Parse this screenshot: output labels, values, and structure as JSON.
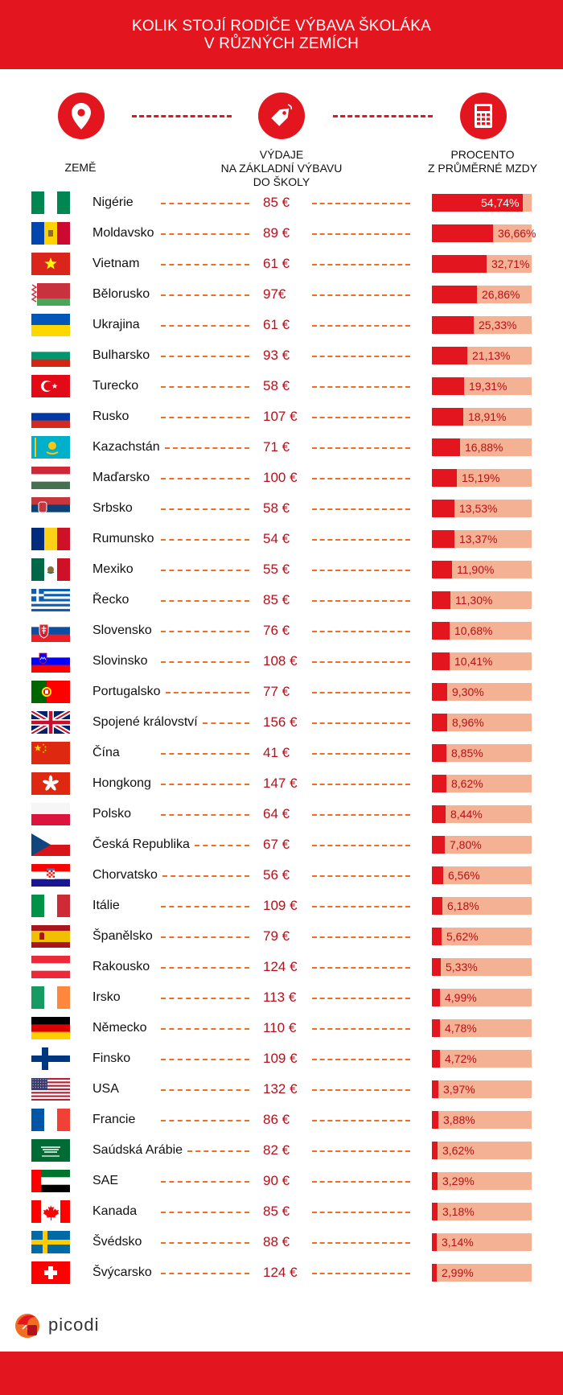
{
  "header": {
    "line1": "KOLIK STOJÍ RODIČE VÝBAVA ŠKOLÁKA",
    "line2": "V RŮZNÝCH ZEMÍCH"
  },
  "columns": {
    "country": "ZEMĚ",
    "spend_1": "VÝDAJE",
    "spend_2": "NA ZÁKLADNÍ VÝBAVU",
    "spend_3": "DO ŠKOLY",
    "pct_1": "PROCENTO",
    "pct_2": "Z PRŮMĚRNÉ MZDY"
  },
  "icons": [
    "location-pin-icon",
    "price-tag-icon",
    "calculator-icon"
  ],
  "colors": {
    "accent": "#e3161f",
    "bar_bg": "#f5b193",
    "price_text": "#b2121c",
    "dash": "#f26c22"
  },
  "logo": {
    "text": "picodi"
  },
  "chart_data": {
    "type": "bar",
    "xlim": [
      0,
      60
    ],
    "rows": [
      {
        "country": "Nigérie",
        "flag": "nigeria",
        "price": "85 €",
        "pct": 54.74,
        "pct_label": "54,74%"
      },
      {
        "country": "Moldavsko",
        "flag": "moldova",
        "price": "89 €",
        "pct": 36.66,
        "pct_label": "36,66%"
      },
      {
        "country": "Vietnam",
        "flag": "vietnam",
        "price": "61 €",
        "pct": 32.71,
        "pct_label": "32,71%"
      },
      {
        "country": "Bělorusko",
        "flag": "belarus",
        "price": "97€",
        "pct": 26.86,
        "pct_label": "26,86%"
      },
      {
        "country": "Ukrajina",
        "flag": "ukraine",
        "price": "61 €",
        "pct": 25.33,
        "pct_label": "25,33%"
      },
      {
        "country": "Bulharsko",
        "flag": "bulgaria",
        "price": "93 €",
        "pct": 21.13,
        "pct_label": "21,13%"
      },
      {
        "country": "Turecko",
        "flag": "turkey",
        "price": "58 €",
        "pct": 19.31,
        "pct_label": "19,31%"
      },
      {
        "country": "Rusko",
        "flag": "russia",
        "price": "107 €",
        "pct": 18.91,
        "pct_label": "18,91%"
      },
      {
        "country": "Kazachstán",
        "flag": "kazakhstan",
        "price": "71 €",
        "pct": 16.88,
        "pct_label": "16,88%"
      },
      {
        "country": "Maďarsko",
        "flag": "hungary",
        "price": "100 €",
        "pct": 15.19,
        "pct_label": "15,19%"
      },
      {
        "country": "Srbsko",
        "flag": "serbia",
        "price": "58 €",
        "pct": 13.53,
        "pct_label": "13,53%"
      },
      {
        "country": "Rumunsko",
        "flag": "romania",
        "price": "54 €",
        "pct": 13.37,
        "pct_label": "13,37%"
      },
      {
        "country": "Mexiko",
        "flag": "mexico",
        "price": "55 €",
        "pct": 11.9,
        "pct_label": "11,90%"
      },
      {
        "country": "Řecko",
        "flag": "greece",
        "price": "85 €",
        "pct": 11.3,
        "pct_label": "11,30%"
      },
      {
        "country": "Slovensko",
        "flag": "slovakia",
        "price": "76 €",
        "pct": 10.68,
        "pct_label": "10,68%"
      },
      {
        "country": "Slovinsko",
        "flag": "slovenia",
        "price": "108 €",
        "pct": 10.41,
        "pct_label": "10,41%"
      },
      {
        "country": "Portugalsko",
        "flag": "portugal",
        "price": "77 €",
        "pct": 9.3,
        "pct_label": "9,30%"
      },
      {
        "country": "Spojené království",
        "flag": "uk",
        "price": "156 €",
        "pct": 8.96,
        "pct_label": "8,96%"
      },
      {
        "country": "Čína",
        "flag": "china",
        "price": "41 €",
        "pct": 8.85,
        "pct_label": "8,85%"
      },
      {
        "country": "Hongkong",
        "flag": "hongkong",
        "price": "147 €",
        "pct": 8.62,
        "pct_label": "8,62%"
      },
      {
        "country": "Polsko",
        "flag": "poland",
        "price": "64 €",
        "pct": 8.44,
        "pct_label": "8,44%"
      },
      {
        "country": "Česká Republika",
        "flag": "czech",
        "price": "67 €",
        "pct": 7.8,
        "pct_label": "7,80%"
      },
      {
        "country": "Chorvatsko",
        "flag": "croatia",
        "price": "56 €",
        "pct": 6.56,
        "pct_label": "6,56%"
      },
      {
        "country": "Itálie",
        "flag": "italy",
        "price": "109 €",
        "pct": 6.18,
        "pct_label": "6,18%"
      },
      {
        "country": "Španělsko",
        "flag": "spain",
        "price": "79 €",
        "pct": 5.62,
        "pct_label": "5,62%"
      },
      {
        "country": "Rakousko",
        "flag": "austria",
        "price": "124 €",
        "pct": 5.33,
        "pct_label": "5,33%"
      },
      {
        "country": "Irsko",
        "flag": "ireland",
        "price": "113 €",
        "pct": 4.99,
        "pct_label": "4,99%"
      },
      {
        "country": "Německo",
        "flag": "germany",
        "price": "110 €",
        "pct": 4.78,
        "pct_label": "4,78%"
      },
      {
        "country": "Finsko",
        "flag": "finland",
        "price": "109 €",
        "pct": 4.72,
        "pct_label": "4,72%"
      },
      {
        "country": "USA",
        "flag": "usa",
        "price": "132 €",
        "pct": 3.97,
        "pct_label": "3,97%"
      },
      {
        "country": "Francie",
        "flag": "france",
        "price": "86 €",
        "pct": 3.88,
        "pct_label": "3,88%"
      },
      {
        "country": "Saúdská Arábie",
        "flag": "saudi",
        "price": "82 €",
        "pct": 3.62,
        "pct_label": "3,62%"
      },
      {
        "country": "SAE",
        "flag": "uae",
        "price": "90 €",
        "pct": 3.29,
        "pct_label": "3,29%"
      },
      {
        "country": "Kanada",
        "flag": "canada",
        "price": "85 €",
        "pct": 3.18,
        "pct_label": "3,18%"
      },
      {
        "country": "Švédsko",
        "flag": "sweden",
        "price": "88 €",
        "pct": 3.14,
        "pct_label": "3,14%"
      },
      {
        "country": "Švýcarsko",
        "flag": "switzerland",
        "price": "124 €",
        "pct": 2.99,
        "pct_label": "2,99%"
      }
    ]
  }
}
